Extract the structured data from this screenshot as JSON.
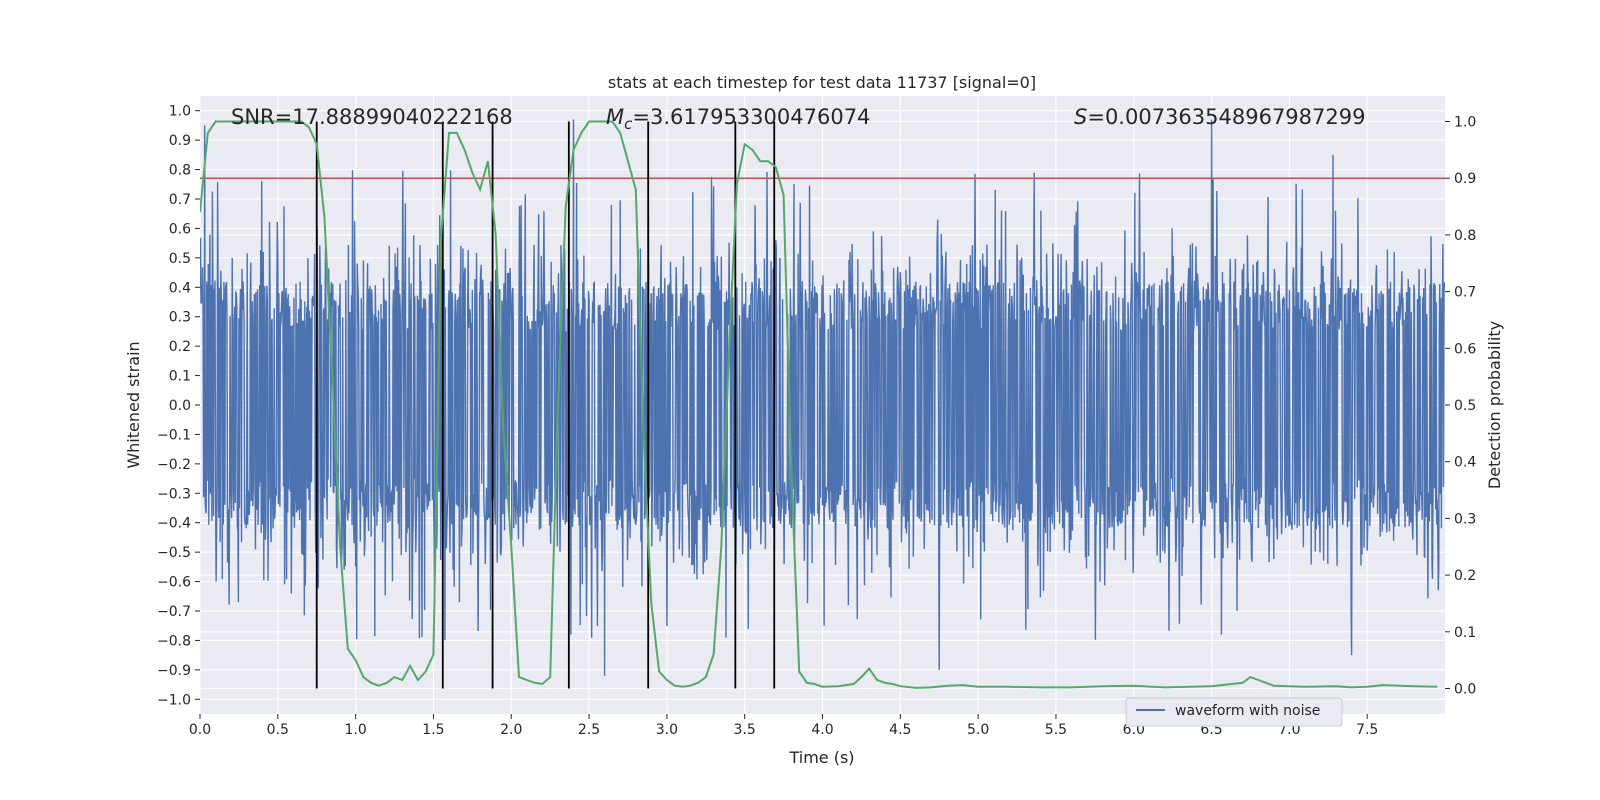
{
  "chart_data": {
    "type": "line",
    "title": "stats at each timestep for test data 11737 [signal=0]",
    "xlabel": "Time (s)",
    "ylabel": "Whitened strain",
    "y2label": "Detection probability",
    "xlim": [
      0.0,
      8.0
    ],
    "ylim": [
      -1.05,
      1.05
    ],
    "y2lim": [
      -0.045,
      1.045
    ],
    "x_ticks": [
      0.0,
      0.5,
      1.0,
      1.5,
      2.0,
      2.5,
      3.0,
      3.5,
      4.0,
      4.5,
      5.0,
      5.5,
      6.0,
      6.5,
      7.0,
      7.5
    ],
    "x_tick_labels": [
      "0.0",
      "0.5",
      "1.0",
      "1.5",
      "2.0",
      "2.5",
      "3.0",
      "3.5",
      "4.0",
      "4.5",
      "5.0",
      "5.5",
      "6.0",
      "6.5",
      "7.0",
      "7.5"
    ],
    "y_ticks": [
      1.0,
      0.9,
      0.8,
      0.7,
      0.6,
      0.5,
      0.4,
      0.3,
      0.2,
      0.1,
      0.0,
      -0.1,
      -0.2,
      -0.3,
      -0.4,
      -0.5,
      -0.6,
      -0.7,
      -0.8,
      -0.9,
      -1.0
    ],
    "y_tick_labels": [
      "1.0",
      "0.9",
      "0.8",
      "0.7",
      "0.6",
      "0.5",
      "0.4",
      "0.3",
      "0.2",
      "0.1",
      "0.0",
      "−0.1",
      "−0.2",
      "−0.3",
      "−0.4",
      "−0.5",
      "−0.6",
      "−0.7",
      "−0.8",
      "−0.9",
      "−1.0"
    ],
    "y2_ticks": [
      1.0,
      0.9,
      0.8,
      0.7,
      0.6,
      0.5,
      0.4,
      0.3,
      0.2,
      0.1,
      0.0
    ],
    "y2_tick_labels": [
      "1.0",
      "0.9",
      "0.8",
      "0.7",
      "0.6",
      "0.5",
      "0.4",
      "0.3",
      "0.2",
      "0.1",
      "0.0"
    ],
    "annotations": {
      "snr": "SNR=17.88899040222168",
      "mc_symbol": "M",
      "mc_sub": "c",
      "mc_value": "=3.617953300476074",
      "s_symbol": "S",
      "s_value": "=0.007363548967987299"
    },
    "threshold_y2": 0.9,
    "vertical_lines_x": [
      0.75,
      1.56,
      1.88,
      2.37,
      2.88,
      3.44,
      3.69
    ],
    "vertical_lines_y2_range": [
      0.0,
      1.0
    ],
    "series": [
      {
        "name": "waveform with noise",
        "axis": "left",
        "kind": "dense-noise",
        "sample_rate_hz": 300,
        "x_range": [
          0.0,
          8.0
        ],
        "typical_amplitude": [
          -0.38,
          0.4
        ],
        "notable_peaks": [
          {
            "x": 0.03,
            "y": 0.95
          },
          {
            "x": 2.4,
            "y": 0.97
          },
          {
            "x": 6.5,
            "y": 0.97
          },
          {
            "x": 7.28,
            "y": 0.85
          },
          {
            "x": 2.6,
            "y": -0.92
          },
          {
            "x": 4.75,
            "y": -0.9
          },
          {
            "x": 7.4,
            "y": -0.85
          }
        ],
        "color": "#4c72b0"
      },
      {
        "name": "Detection probability",
        "axis": "right",
        "kind": "line",
        "x": [
          0.0,
          0.05,
          0.1,
          0.15,
          0.2,
          0.3,
          0.4,
          0.5,
          0.6,
          0.65,
          0.7,
          0.75,
          0.8,
          0.85,
          0.9,
          0.95,
          1.0,
          1.05,
          1.1,
          1.15,
          1.2,
          1.25,
          1.3,
          1.35,
          1.4,
          1.45,
          1.5,
          1.55,
          1.6,
          1.65,
          1.7,
          1.75,
          1.8,
          1.85,
          1.9,
          1.95,
          2.0,
          2.05,
          2.1,
          2.15,
          2.2,
          2.25,
          2.3,
          2.35,
          2.4,
          2.45,
          2.5,
          2.55,
          2.6,
          2.65,
          2.7,
          2.75,
          2.8,
          2.85,
          2.9,
          2.95,
          3.0,
          3.05,
          3.1,
          3.15,
          3.2,
          3.25,
          3.3,
          3.35,
          3.4,
          3.45,
          3.5,
          3.55,
          3.6,
          3.65,
          3.7,
          3.75,
          3.8,
          3.85,
          3.9,
          3.95,
          4.0,
          4.1,
          4.2,
          4.25,
          4.3,
          4.35,
          4.4,
          4.45,
          4.5,
          4.6,
          4.7,
          4.8,
          4.9,
          5.0,
          5.2,
          5.4,
          5.6,
          5.8,
          6.0,
          6.2,
          6.5,
          6.7,
          6.75,
          6.9,
          7.1,
          7.3,
          7.4,
          7.5,
          7.6,
          7.8,
          7.95
        ],
        "y": [
          0.84,
          0.98,
          1.0,
          1.0,
          1.0,
          1.0,
          1.0,
          1.0,
          1.0,
          1.0,
          0.99,
          0.96,
          0.83,
          0.55,
          0.25,
          0.07,
          0.05,
          0.02,
          0.01,
          0.005,
          0.01,
          0.02,
          0.015,
          0.04,
          0.015,
          0.03,
          0.06,
          0.8,
          0.98,
          0.98,
          0.95,
          0.91,
          0.88,
          0.93,
          0.8,
          0.45,
          0.25,
          0.02,
          0.015,
          0.01,
          0.008,
          0.02,
          0.5,
          0.85,
          0.95,
          0.98,
          1.0,
          1.0,
          1.0,
          1.0,
          0.98,
          0.93,
          0.88,
          0.45,
          0.15,
          0.03,
          0.015,
          0.005,
          0.003,
          0.005,
          0.01,
          0.02,
          0.06,
          0.25,
          0.6,
          0.89,
          0.96,
          0.95,
          0.93,
          0.93,
          0.92,
          0.87,
          0.38,
          0.03,
          0.01,
          0.008,
          0.003,
          0.004,
          0.008,
          0.02,
          0.035,
          0.015,
          0.01,
          0.008,
          0.004,
          0.001,
          0.002,
          0.005,
          0.006,
          0.003,
          0.003,
          0.002,
          0.002,
          0.004,
          0.005,
          0.002,
          0.004,
          0.01,
          0.02,
          0.005,
          0.003,
          0.004,
          0.002,
          0.003,
          0.006,
          0.004,
          0.003
        ],
        "color": "#55a868"
      }
    ],
    "legend": {
      "entries": [
        "waveform with noise"
      ],
      "placement": "lower-right"
    }
  }
}
